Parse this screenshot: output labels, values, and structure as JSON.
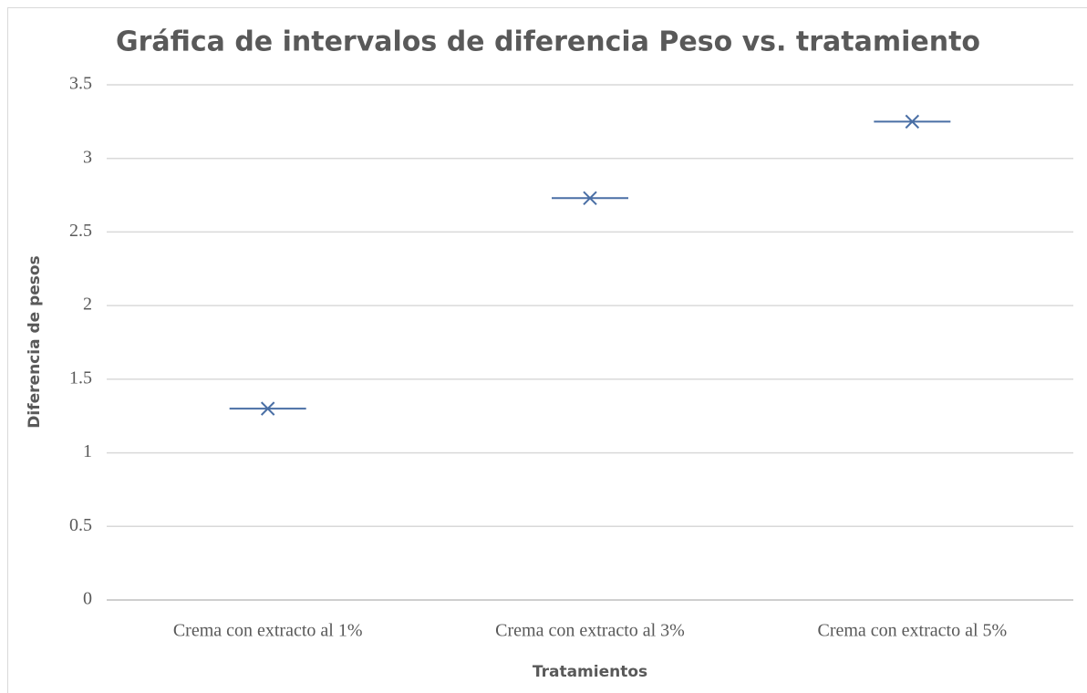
{
  "chart_data": {
    "type": "scatter",
    "title": "Gráfica de intervalos de diferencia Peso vs. tratamiento",
    "x_label": "Tratamientos",
    "y_label": "Diferencia de pesos",
    "categories": [
      "Crema con extracto al 1%",
      "Crema con extracto al 3%",
      "Crema con extracto al 5%"
    ],
    "values": [
      1.3,
      2.73,
      3.25
    ],
    "color": "#4a6fa5",
    "ylim": [
      0,
      3.5
    ],
    "yticks": [
      0,
      0.5,
      1,
      1.5,
      2,
      2.5,
      3,
      3.5
    ],
    "grid": true
  }
}
